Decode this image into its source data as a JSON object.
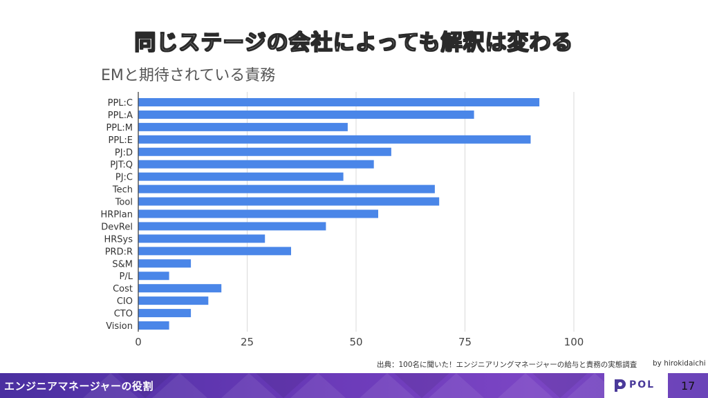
{
  "slide": {
    "title": "同じステージの会社によっても解釈は変わる",
    "source": "出典：100名に聞いた！エンジニアリングマネージャーの給与と責務の実態調査",
    "credit": "by hirokidaichi",
    "footer_label": "エンジニアマネージャーの役割",
    "logo_text": "POL",
    "page_number": "17",
    "footer_color": "#5b3ab0"
  },
  "chart_data": {
    "type": "bar",
    "orientation": "horizontal",
    "title": "EMと期待されている責務",
    "categories": [
      "PPL:C",
      "PPL:A",
      "PPL:M",
      "PPL:E",
      "PJ:D",
      "PJT:Q",
      "PJ:C",
      "Tech",
      "Tool",
      "HRPlan",
      "DevRel",
      "HRSys",
      "PRD:R",
      "S&M",
      "P/L",
      "Cost",
      "CIO",
      "CTO",
      "Vision"
    ],
    "values": [
      92,
      77,
      48,
      90,
      58,
      54,
      47,
      68,
      69,
      55,
      43,
      29,
      35,
      12,
      7,
      19,
      16,
      12,
      7
    ],
    "xlim": [
      0,
      100
    ],
    "xticks": [
      "0",
      "25",
      "50",
      "75",
      "100"
    ],
    "grid": true,
    "legend": "none",
    "bar_color": "#4a86e8"
  }
}
